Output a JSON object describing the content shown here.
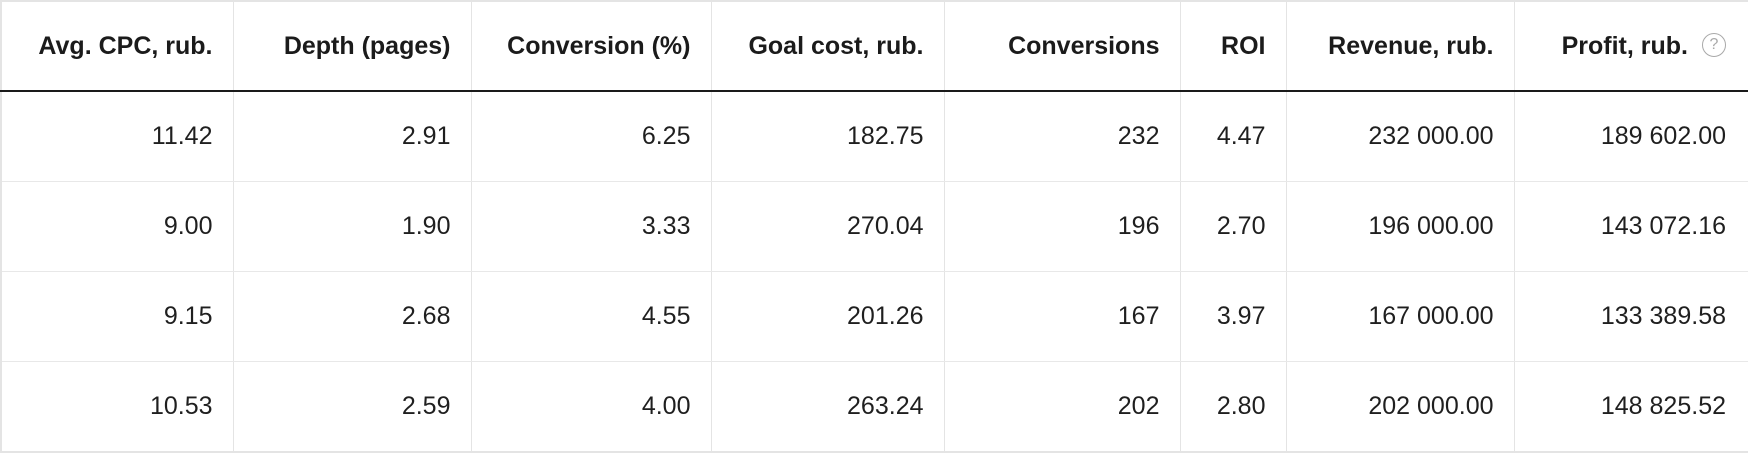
{
  "table": {
    "headers": [
      "Avg. CPC, rub.",
      "Depth (pages)",
      "Conversion (%)",
      "Goal cost, rub.",
      "Conversions",
      "ROI",
      "Revenue, rub.",
      "Profit, rub."
    ],
    "help_icon_glyph": "?",
    "rows": [
      [
        "11.42",
        "2.91",
        "6.25",
        "182.75",
        "232",
        "4.47",
        "232 000.00",
        "189 602.00"
      ],
      [
        "9.00",
        "1.90",
        "3.33",
        "270.04",
        "196",
        "2.70",
        "196 000.00",
        "143 072.16"
      ],
      [
        "9.15",
        "2.68",
        "4.55",
        "201.26",
        "167",
        "3.97",
        "167 000.00",
        "133 389.58"
      ],
      [
        "10.53",
        "2.59",
        "4.00",
        "263.24",
        "202",
        "2.80",
        "202 000.00",
        "148 825.52"
      ]
    ]
  },
  "icons": {
    "help": "question-circle-icon"
  }
}
